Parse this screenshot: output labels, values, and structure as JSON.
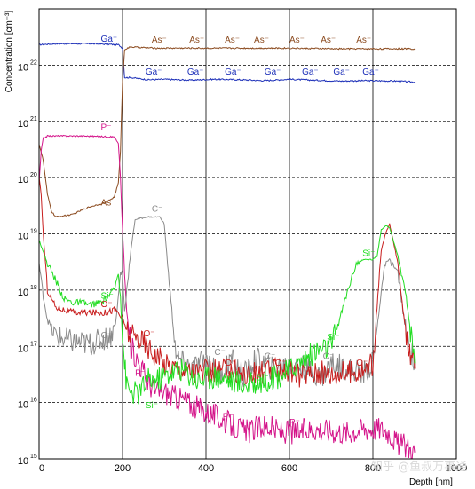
{
  "chart_data": {
    "type": "line",
    "title": "",
    "xlabel": "Depth [nm]",
    "ylabel": "Concentration [cm⁻³]",
    "x_scale": "linear",
    "y_scale": "log",
    "xlim": [
      0,
      1000
    ],
    "ylim": [
      1000000000000000.0,
      1e+23
    ],
    "x_ticks": [
      {
        "value": 0,
        "label": "0"
      },
      {
        "value": 200,
        "label": "200"
      },
      {
        "value": 400,
        "label": "400"
      },
      {
        "value": 600,
        "label": "600"
      },
      {
        "value": 800,
        "label": "800"
      },
      {
        "value": 1000,
        "label": "1000"
      }
    ],
    "y_ticks": [
      {
        "value": 1000000000000000.0,
        "base": "10",
        "exp": "15"
      },
      {
        "value": 1e+16,
        "base": "10",
        "exp": "16"
      },
      {
        "value": 1e+17,
        "base": "10",
        "exp": "17"
      },
      {
        "value": 1e+18,
        "base": "10",
        "exp": "18"
      },
      {
        "value": 1e+19,
        "base": "10",
        "exp": "19"
      },
      {
        "value": 1e+20,
        "base": "10",
        "exp": "20"
      },
      {
        "value": 1e+21,
        "base": "10",
        "exp": "21"
      },
      {
        "value": 1e+22,
        "base": "10",
        "exp": "22"
      }
    ],
    "grid": {
      "x": "solid vertical",
      "y": "dashed horizontal"
    },
    "series": [
      {
        "name": "Ga⁻",
        "color": "#1c2fb8",
        "x": [
          0,
          40,
          80,
          120,
          160,
          190,
          200,
          205,
          220,
          260,
          300,
          360,
          420,
          480,
          540,
          600,
          660,
          720,
          780,
          860,
          900
        ],
        "y": [
          2.3e+22,
          2.4e+22,
          2.4e+22,
          2.4e+22,
          2.35e+22,
          2.3e+22,
          2e+22,
          6e+21,
          6e+21,
          5.5e+21,
          5.6e+21,
          5.4e+21,
          5.6e+21,
          5.5e+21,
          5.3e+21,
          5.6e+21,
          5.4e+21,
          5.2e+21,
          5.3e+21,
          5.2e+21,
          5e+21
        ],
        "labels": [
          {
            "x": 148,
            "y": 2.6e+22
          },
          {
            "x": 255,
            "y": 6.8e+21
          },
          {
            "x": 355,
            "y": 6.8e+21
          },
          {
            "x": 445,
            "y": 6.8e+21
          },
          {
            "x": 540,
            "y": 6.8e+21
          },
          {
            "x": 630,
            "y": 6.8e+21
          },
          {
            "x": 705,
            "y": 6.8e+21
          },
          {
            "x": 775,
            "y": 6.8e+21
          }
        ]
      },
      {
        "name": "As⁻",
        "color": "#8b4a1e",
        "x": [
          0,
          10,
          20,
          30,
          40,
          60,
          80,
          100,
          120,
          140,
          160,
          180,
          190,
          195,
          200,
          205,
          220,
          280,
          400,
          500,
          600,
          700,
          800,
          900
        ],
        "y": [
          4e+20,
          2e+20,
          5e+19,
          2.5e+19,
          2e+19,
          2.1e+19,
          2.2e+19,
          2.6e+19,
          3e+19,
          3.3e+19,
          3.6e+19,
          4.5e+19,
          8e+19,
          3e+20,
          5e+21,
          1.9e+22,
          2.1e+22,
          2e+22,
          2e+22,
          2e+22,
          2e+22,
          1.95e+22,
          1.95e+22,
          1.95e+22
        ],
        "labels": [
          {
            "x": 148,
            "y": 3.2e+19
          },
          {
            "x": 270,
            "y": 2.5e+22
          },
          {
            "x": 360,
            "y": 2.5e+22
          },
          {
            "x": 445,
            "y": 2.5e+22
          },
          {
            "x": 515,
            "y": 2.5e+22
          },
          {
            "x": 600,
            "y": 2.5e+22
          },
          {
            "x": 675,
            "y": 2.5e+22
          },
          {
            "x": 760,
            "y": 2.5e+22
          }
        ]
      },
      {
        "name": "P⁻",
        "color": "#d4148a",
        "x": [
          0,
          5,
          10,
          20,
          60,
          100,
          140,
          180,
          190,
          195,
          200,
          205,
          210,
          220,
          240,
          260,
          280,
          300,
          320,
          340,
          380,
          420,
          460,
          500,
          540,
          580,
          620,
          660,
          700,
          740,
          780,
          820,
          840,
          860,
          880,
          900
        ],
        "y": [
          8e+19,
          3e+20,
          5e+20,
          5.5e+20,
          5.5e+20,
          5.5e+20,
          5.4e+20,
          5.3e+20,
          4e+20,
          1e+20,
          1.2e+19,
          2e+18,
          4e+17,
          1e+17,
          5e+16,
          2.5e+16,
          1.5e+16,
          1.6e+16,
          1.3e+16,
          1.2e+16,
          8000000000000000.0,
          6000000000000000.0,
          4000000000000000.0,
          3000000000000000.0,
          4000000000000000.0,
          3000000000000000.0,
          3000000000000000.0,
          3500000000000000.0,
          3200000000000000.0,
          3000000000000000.0,
          3500000000000000.0,
          3500000000000000.0,
          3000000000000000.0,
          1800000000000000.0,
          1700000000000000.0,
          1300000000000000.0
        ],
        "labels": [
          {
            "x": 148,
            "y": 7e+20
          },
          {
            "x": 230,
            "y": 3e+16
          },
          {
            "x": 440,
            "y": 5000000000000000.0
          },
          {
            "x": 600,
            "y": 4000000000000000.0
          }
        ]
      },
      {
        "name": "C⁻",
        "color": "#8a8a8a",
        "x": [
          0,
          10,
          20,
          40,
          80,
          120,
          150,
          170,
          185,
          195,
          200,
          205,
          210,
          220,
          230,
          260,
          290,
          300,
          310,
          320,
          330,
          345,
          370,
          400,
          430,
          460,
          490,
          520,
          560,
          600,
          640,
          680,
          700,
          740,
          780,
          800,
          810,
          820,
          830,
          840,
          860,
          880,
          900
        ],
        "y": [
          3e+18,
          8e+17,
          3e+17,
          1.5e+17,
          1.2e+17,
          1.1e+17,
          1.3e+17,
          1.5e+17,
          3e+17,
          2e+18,
          2e+18,
          4e+17,
          1e+18,
          5e+18,
          1.8e+19,
          2e+19,
          2e+19,
          1.5e+19,
          2e+18,
          3e+17,
          6e+16,
          5e+16,
          4e+16,
          6e+16,
          3e+16,
          6e+16,
          3e+16,
          6e+16,
          4e+16,
          5e+16,
          4e+16,
          3e+16,
          5e+16,
          4e+16,
          3.5e+16,
          5e+16,
          2e+17,
          1e+18,
          3e+18,
          3.5e+18,
          2e+18,
          1.5e+17,
          5e+16
        ],
        "labels": [
          {
            "x": 148,
            "y": 1.4e+17
          },
          {
            "x": 270,
            "y": 2.5e+19
          },
          {
            "x": 420,
            "y": 7e+16
          },
          {
            "x": 540,
            "y": 6e+16
          },
          {
            "x": 680,
            "y": 6e+16
          }
        ]
      },
      {
        "name": "O⁻",
        "color": "#c81e1e",
        "x": [
          0,
          5,
          10,
          20,
          40,
          80,
          120,
          160,
          180,
          190,
          200,
          210,
          220,
          240,
          260,
          300,
          340,
          380,
          420,
          460,
          500,
          540,
          580,
          620,
          660,
          700,
          740,
          780,
          800,
          810,
          820,
          830,
          840,
          860,
          880,
          900
        ],
        "y": [
          1e+20,
          5e+19,
          1e+19,
          1e+18,
          5e+17,
          4e+17,
          4e+17,
          4e+17,
          4.5e+17,
          4e+17,
          3e+17,
          2e+17,
          1.5e+17,
          1.4e+17,
          1e+17,
          5e+16,
          4e+16,
          3.5e+16,
          3.5e+16,
          4e+16,
          3e+16,
          3.5e+16,
          4e+16,
          3e+16,
          3.5e+16,
          3.2e+16,
          3.5e+16,
          3.8e+16,
          5e+16,
          5e+17,
          5e+18,
          1e+19,
          1.5e+19,
          3e+18,
          1.5e+17,
          4e+16
        ],
        "labels": [
          {
            "x": 148,
            "y": 5e+17
          },
          {
            "x": 250,
            "y": 1.5e+17
          },
          {
            "x": 445,
            "y": 4.5e+16
          },
          {
            "x": 565,
            "y": 4.5e+16
          },
          {
            "x": 760,
            "y": 4.5e+16
          }
        ]
      },
      {
        "name": "Si⁻",
        "color": "#22dd22",
        "x": [
          0,
          5,
          20,
          40,
          60,
          80,
          100,
          120,
          150,
          180,
          190,
          195,
          200,
          205,
          210,
          220,
          240,
          260,
          280,
          300,
          340,
          380,
          420,
          460,
          500,
          540,
          580,
          620,
          660,
          700,
          720,
          740,
          760,
          780,
          800,
          810,
          820,
          830,
          840,
          860,
          880,
          900
        ],
        "y": [
          8e+18,
          6e+18,
          3e+18,
          1.5e+18,
          7e+17,
          6e+17,
          6e+17,
          5.5e+17,
          6e+17,
          1e+18,
          2e+18,
          8e+17,
          1.5e+17,
          5e+16,
          2e+16,
          1.5e+16,
          1.5e+16,
          2.5e+16,
          2.5e+16,
          3e+16,
          4e+16,
          2.5e+16,
          3e+16,
          2.5e+16,
          2e+16,
          2.5e+16,
          3e+16,
          5e+16,
          8e+16,
          1e+17,
          3e+17,
          1e+18,
          3e+18,
          3.5e+18,
          3.5e+18,
          4e+18,
          1.2e+19,
          1.4e+19,
          1.3e+19,
          4e+18,
          7e+17,
          5e+16
        ],
        "labels": [
          {
            "x": 148,
            "y": 7e+17
          },
          {
            "x": 255,
            "y": 8000000000000000.0
          },
          {
            "x": 520,
            "y": 2.5e+16
          },
          {
            "x": 690,
            "y": 1.3e+17
          },
          {
            "x": 775,
            "y": 4e+18
          }
        ]
      }
    ]
  },
  "watermark": "知乎 @鱼叔万事通"
}
